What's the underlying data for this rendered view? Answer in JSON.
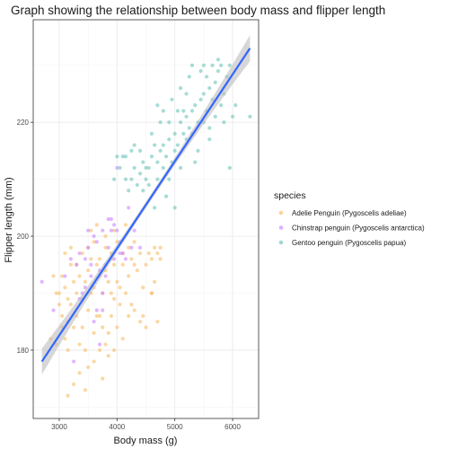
{
  "chart_data": {
    "type": "scatter",
    "title": "Graph showing the relationship between body mass and flipper length",
    "xlabel": "Body mass (g)",
    "ylabel": "Flipper length (mm)",
    "xlim": [
      2550,
      6450
    ],
    "ylim": [
      168,
      238
    ],
    "xticks": [
      3000,
      4000,
      5000,
      6000
    ],
    "xtick_labels": [
      "3000",
      "4000",
      "5000",
      "6000"
    ],
    "yticks": [
      180,
      200,
      220
    ],
    "ytick_labels": [
      "180",
      "200",
      "220"
    ],
    "grid": true,
    "legend": {
      "title": "species",
      "position": "right"
    },
    "regression": {
      "method": "linear",
      "x": [
        2700,
        6300
      ],
      "y": [
        178.0,
        233.0
      ],
      "color": "#3366ff",
      "band_color": "#bdbdbd"
    },
    "series": [
      {
        "name": "Adelie Penguin (Pygoscelis adeliae)",
        "color": "#f5b85b",
        "points": [
          [
            2900,
            193
          ],
          [
            2950,
            190
          ],
          [
            3000,
            188
          ],
          [
            3050,
            186
          ],
          [
            3100,
            182
          ],
          [
            3150,
            185
          ],
          [
            3200,
            188
          ],
          [
            3250,
            184
          ],
          [
            3300,
            186
          ],
          [
            3350,
            181
          ],
          [
            3400,
            184
          ],
          [
            3450,
            180
          ],
          [
            3500,
            187
          ],
          [
            3550,
            190
          ],
          [
            3600,
            183
          ],
          [
            3650,
            186
          ],
          [
            3700,
            180
          ],
          [
            3750,
            184
          ],
          [
            3800,
            181
          ],
          [
            3850,
            183
          ],
          [
            3900,
            186
          ],
          [
            4000,
            184
          ],
          [
            4050,
            188
          ],
          [
            4100,
            182
          ],
          [
            4200,
            186
          ],
          [
            4300,
            187
          ],
          [
            4400,
            185
          ],
          [
            4500,
            184
          ],
          [
            4600,
            190
          ],
          [
            4700,
            185
          ],
          [
            3000,
            190
          ],
          [
            3050,
            193
          ],
          [
            3100,
            191
          ],
          [
            3150,
            189
          ],
          [
            3200,
            195
          ],
          [
            3250,
            192
          ],
          [
            3300,
            190
          ],
          [
            3350,
            193
          ],
          [
            3400,
            189
          ],
          [
            3450,
            192
          ],
          [
            3500,
            194
          ],
          [
            3550,
            196
          ],
          [
            3600,
            191
          ],
          [
            3650,
            195
          ],
          [
            3700,
            193
          ],
          [
            3750,
            190
          ],
          [
            3800,
            194
          ],
          [
            3850,
            192
          ],
          [
            3900,
            196
          ],
          [
            3950,
            195
          ],
          [
            4000,
            192
          ],
          [
            4050,
            191
          ],
          [
            4100,
            195
          ],
          [
            4150,
            190
          ],
          [
            4200,
            193
          ],
          [
            4250,
            196
          ],
          [
            4300,
            195
          ],
          [
            4400,
            197
          ],
          [
            4450,
            191
          ],
          [
            4500,
            195
          ],
          [
            4550,
            197
          ],
          [
            4600,
            190
          ],
          [
            4650,
            198
          ],
          [
            4700,
            197
          ],
          [
            4750,
            196
          ],
          [
            3100,
            197
          ],
          [
            3200,
            198
          ],
          [
            3300,
            195
          ],
          [
            3400,
            197
          ],
          [
            3500,
            198
          ],
          [
            3600,
            199
          ],
          [
            3700,
            196
          ],
          [
            3800,
            198
          ],
          [
            3900,
            197
          ],
          [
            4000,
            199
          ],
          [
            4100,
            197
          ],
          [
            4200,
            198
          ],
          [
            4300,
            199
          ],
          [
            3550,
            201
          ],
          [
            3650,
            202
          ],
          [
            3800,
            200
          ],
          [
            3950,
            201
          ],
          [
            4150,
            202
          ],
          [
            3250,
            174
          ],
          [
            3350,
            176
          ],
          [
            3450,
            173
          ],
          [
            3150,
            172
          ],
          [
            3500,
            177
          ],
          [
            3600,
            178
          ],
          [
            3750,
            175
          ],
          [
            3850,
            179
          ],
          [
            3950,
            180
          ],
          [
            2950,
            181
          ],
          [
            2850,
            182
          ],
          [
            3700,
            186
          ],
          [
            3950,
            189
          ],
          [
            4250,
            188
          ],
          [
            4450,
            186
          ],
          [
            3050,
            184
          ],
          [
            3150,
            180
          ],
          [
            3900,
            190
          ],
          [
            4350,
            194
          ],
          [
            4600,
            196
          ],
          [
            4650,
            192
          ],
          [
            4750,
            198
          ]
        ]
      },
      {
        "name": "Chinstrap penguin (Pygoscelis antarctica)",
        "color": "#c77cff",
        "points": [
          [
            2700,
            192
          ],
          [
            2900,
            187
          ],
          [
            3250,
            178
          ],
          [
            3300,
            195
          ],
          [
            3350,
            197
          ],
          [
            3400,
            190
          ],
          [
            3450,
            196
          ],
          [
            3500,
            198
          ],
          [
            3550,
            193
          ],
          [
            3600,
            200
          ],
          [
            3650,
            199
          ],
          [
            3700,
            194
          ],
          [
            3750,
            201
          ],
          [
            3800,
            195
          ],
          [
            3850,
            198
          ],
          [
            3900,
            203
          ],
          [
            3950,
            196
          ],
          [
            4000,
            201
          ],
          [
            4050,
            199
          ],
          [
            4100,
            197
          ],
          [
            4150,
            196
          ],
          [
            4200,
            205
          ],
          [
            4250,
            198
          ],
          [
            4300,
            201
          ],
          [
            4400,
            198
          ],
          [
            3450,
            191
          ],
          [
            3550,
            195
          ],
          [
            3650,
            187
          ],
          [
            3700,
            181
          ],
          [
            3750,
            190
          ],
          [
            3800,
            193
          ],
          [
            3900,
            201
          ],
          [
            4050,
            197
          ],
          [
            3100,
            193
          ],
          [
            3200,
            196
          ],
          [
            3350,
            189
          ],
          [
            3500,
            201
          ],
          [
            3600,
            185
          ],
          [
            3750,
            187
          ],
          [
            3850,
            203
          ],
          [
            3950,
            202
          ],
          [
            4000,
            212
          ]
        ]
      },
      {
        "name": "Gentoo penguin (Pygoscelis papua)",
        "color": "#5fbfb3",
        "points": [
          [
            3950,
            210
          ],
          [
            4050,
            212
          ],
          [
            4100,
            214
          ],
          [
            4150,
            210
          ],
          [
            4200,
            208
          ],
          [
            4250,
            210
          ],
          [
            4300,
            212
          ],
          [
            4350,
            209
          ],
          [
            4400,
            211
          ],
          [
            4450,
            208
          ],
          [
            4500,
            210
          ],
          [
            4550,
            212
          ],
          [
            4600,
            214
          ],
          [
            4650,
            216
          ],
          [
            4700,
            213
          ],
          [
            4750,
            215
          ],
          [
            4800,
            212
          ],
          [
            4850,
            214
          ],
          [
            4900,
            217
          ],
          [
            4950,
            213
          ],
          [
            5000,
            218
          ],
          [
            5050,
            216
          ],
          [
            5100,
            220
          ],
          [
            5150,
            218
          ],
          [
            5200,
            221
          ],
          [
            5250,
            219
          ],
          [
            5300,
            222
          ],
          [
            5350,
            223
          ],
          [
            5400,
            220
          ],
          [
            5450,
            224
          ],
          [
            5500,
            225
          ],
          [
            5550,
            222
          ],
          [
            5600,
            226
          ],
          [
            5650,
            224
          ],
          [
            5700,
            227
          ],
          [
            5750,
            229
          ],
          [
            5800,
            230
          ],
          [
            5850,
            225
          ],
          [
            5900,
            228
          ],
          [
            5950,
            230
          ],
          [
            6000,
            221
          ],
          [
            6300,
            221
          ],
          [
            4700,
            210
          ],
          [
            4800,
            216
          ],
          [
            4900,
            210
          ],
          [
            5000,
            215
          ],
          [
            5100,
            212
          ],
          [
            5200,
            217
          ],
          [
            5300,
            218
          ],
          [
            5400,
            215
          ],
          [
            5500,
            220
          ],
          [
            5600,
            217
          ],
          [
            5700,
            221
          ],
          [
            5800,
            223
          ],
          [
            4650,
            205
          ],
          [
            4850,
            207
          ],
          [
            5150,
            222
          ],
          [
            5250,
            228
          ],
          [
            5550,
            228
          ],
          [
            5650,
            230
          ],
          [
            5750,
            231
          ],
          [
            5450,
            229
          ],
          [
            4950,
            224
          ],
          [
            5050,
            222
          ],
          [
            4750,
            220
          ],
          [
            4600,
            218
          ],
          [
            4500,
            212
          ],
          [
            4400,
            215
          ],
          [
            4300,
            216
          ],
          [
            4150,
            214
          ],
          [
            5350,
            213
          ],
          [
            5600,
            219
          ],
          [
            5850,
            220
          ],
          [
            5950,
            212
          ],
          [
            5000,
            205
          ],
          [
            4900,
            220
          ],
          [
            4800,
            222
          ],
          [
            4700,
            223
          ],
          [
            5200,
            225
          ],
          [
            5100,
            226
          ],
          [
            4550,
            209
          ],
          [
            4450,
            213
          ],
          [
            4250,
            215
          ],
          [
            4000,
            214
          ],
          [
            5300,
            230
          ],
          [
            5500,
            230
          ],
          [
            6050,
            223
          ]
        ]
      }
    ]
  }
}
